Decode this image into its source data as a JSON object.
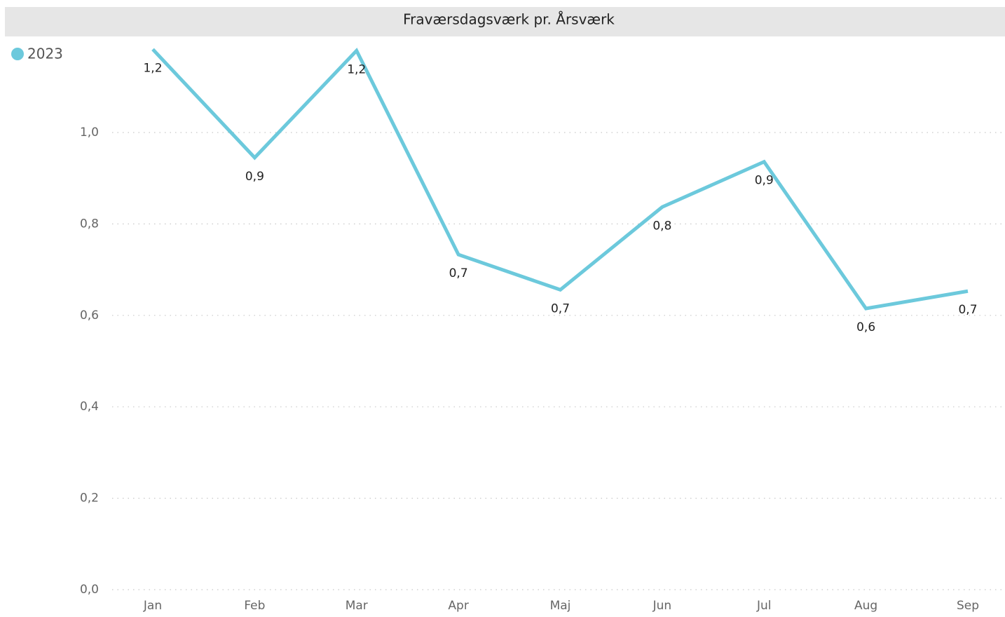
{
  "chart_data": {
    "type": "line",
    "title": "Fraværsdagsværk pr. Årsværk",
    "categories": [
      "Jan",
      "Feb",
      "Mar",
      "Apr",
      "Maj",
      "Jun",
      "Jul",
      "Aug",
      "Sep"
    ],
    "series": [
      {
        "name": "2023",
        "color": "#6cc9dc",
        "values": [
          1.182,
          0.945,
          1.179,
          0.733,
          0.656,
          0.837,
          0.936,
          0.615,
          0.653
        ],
        "value_labels": [
          "1,2",
          "0,9",
          "1,2",
          "0,7",
          "0,7",
          "0,8",
          "0,9",
          "0,6",
          "0,7"
        ]
      }
    ],
    "ylim": [
      0,
      1.2
    ],
    "yticks": [
      {
        "value": 0,
        "label": "0,0"
      },
      {
        "value": 0.2,
        "label": "0,2"
      },
      {
        "value": 0.4,
        "label": "0,4"
      },
      {
        "value": 0.6,
        "label": "0,6"
      },
      {
        "value": 0.8,
        "label": "0,8"
      },
      {
        "value": 1.0,
        "label": "1,0"
      }
    ],
    "grid": true,
    "legend": "top-left"
  }
}
